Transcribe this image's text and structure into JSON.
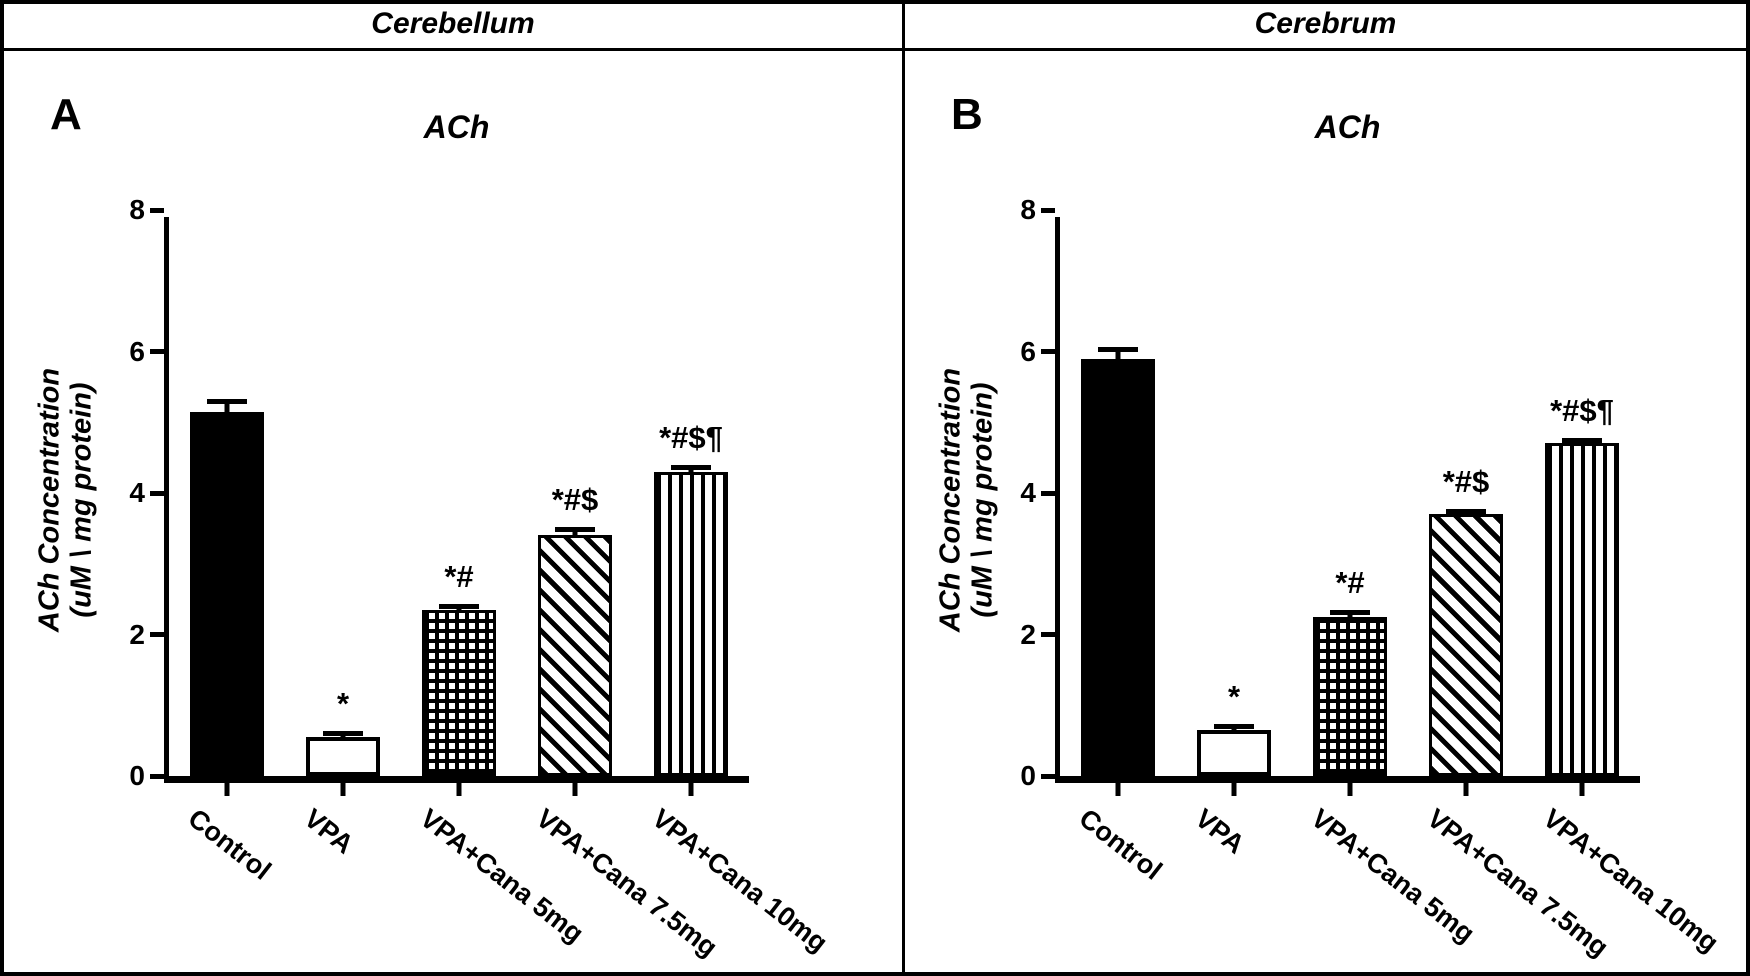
{
  "colors": {
    "ink": "#000000",
    "background": "#ffffff"
  },
  "chart_data": [
    {
      "type": "bar",
      "panel_label": "A",
      "region": "Cerebellum",
      "title": "ACh",
      "ylabel": "ACh Concentration (uM \\ mg protein)",
      "ylabel_lines": [
        "ACh Concentration",
        "(uM \\ mg protein)"
      ],
      "ylim": [
        0,
        8
      ],
      "yticks": [
        0,
        2,
        4,
        6,
        8
      ],
      "grid": false,
      "legend": "none",
      "categories": [
        "Control",
        "VPA",
        "VPA+Cana 5mg",
        "VPA+Cana 7.5mg",
        "VPA+Cana 10mg"
      ],
      "values": [
        5.15,
        0.55,
        2.35,
        3.4,
        4.3
      ],
      "errors_sem": [
        0.18,
        0.08,
        0.08,
        0.12,
        0.1
      ],
      "significance": [
        "",
        "*",
        "*#",
        "*#$",
        "*#$¶"
      ],
      "bar_styles": [
        "solid-black",
        "open-white",
        "grid-hatch",
        "diagonal-hatch",
        "vertical-lines"
      ]
    },
    {
      "type": "bar",
      "panel_label": "B",
      "region": "Cerebrum",
      "title": "ACh",
      "ylabel": "ACh Concentration (uM \\ mg protein)",
      "ylabel_lines": [
        "ACh Concentration",
        "(uM \\ mg protein)"
      ],
      "ylim": [
        0,
        8
      ],
      "yticks": [
        0,
        2,
        4,
        6,
        8
      ],
      "grid": false,
      "legend": "none",
      "categories": [
        "Control",
        "VPA",
        "VPA+Cana 5mg",
        "VPA+Cana 7.5mg",
        "VPA+Cana 10mg"
      ],
      "values": [
        5.9,
        0.65,
        2.25,
        3.7,
        4.7
      ],
      "errors_sem": [
        0.17,
        0.08,
        0.1,
        0.08,
        0.08
      ],
      "significance": [
        "",
        "*",
        "*#",
        "*#$",
        "*#$¶"
      ],
      "bar_styles": [
        "solid-black",
        "open-white",
        "grid-hatch",
        "diagonal-hatch",
        "vertical-lines"
      ]
    }
  ]
}
